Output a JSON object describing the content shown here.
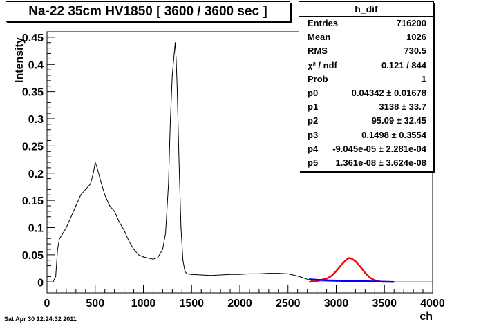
{
  "title": "Na-22 35cm HV1850 [ 3600 / 3600 sec ]",
  "footer": "Sat Apr 30 12:24:32 2011",
  "stats": {
    "name": "h_dif",
    "rows": [
      {
        "key": "Entries",
        "value": "716200"
      },
      {
        "key": "Mean",
        "value": "1026"
      },
      {
        "key": "RMS",
        "value": "730.5"
      },
      {
        "key": "χ² / ndf",
        "value": "0.121 / 844"
      },
      {
        "key": "Prob",
        "value": "1"
      },
      {
        "key": "p0",
        "value": "0.04342 ± 0.01678"
      },
      {
        "key": "p1",
        "value": "3138 ± 33.7"
      },
      {
        "key": "p2",
        "value": "95.09 ± 32.45"
      },
      {
        "key": "p3",
        "value": "0.1498 ± 0.3554"
      },
      {
        "key": "p4",
        "value": "-9.045e-05 ± 2.281e-04"
      },
      {
        "key": "p5",
        "value": "1.361e-08 ± 3.624e-08"
      }
    ]
  },
  "chart_data": {
    "type": "line",
    "title": "Na-22 35cm HV1850 [ 3600 / 3600 sec ]",
    "xlabel": "ch",
    "ylabel": "Intensity",
    "xlim": [
      0,
      4000
    ],
    "ylim": [
      -0.02,
      0.46
    ],
    "xticks": [
      "0",
      "500",
      "1000",
      "1500",
      "2000",
      "2500",
      "3000",
      "3500",
      "4000"
    ],
    "yticks": [
      "0",
      "0.05",
      "0.1",
      "0.15",
      "0.2",
      "0.25",
      "0.3",
      "0.35",
      "0.4",
      "0.45"
    ],
    "colors": {
      "histogram": "#000000",
      "gaussian_fit": "#ff0000",
      "background_fit": "#0000ff",
      "total_fit": "#00aa00"
    },
    "series": [
      {
        "x": [
          0,
          60,
          90,
          110,
          130,
          150,
          200,
          250,
          300,
          350,
          400,
          450,
          480,
          500,
          520,
          550,
          600,
          650,
          700,
          750,
          800,
          850,
          900,
          950,
          1000,
          1050,
          1100,
          1150,
          1200,
          1230,
          1260,
          1280,
          1300,
          1320,
          1330,
          1340,
          1350,
          1370,
          1390,
          1410,
          1430,
          1450,
          1500,
          1600,
          1700,
          1800,
          1900,
          2000,
          2100,
          2200,
          2300,
          2400,
          2500,
          2550,
          2600,
          2650,
          2700,
          2800,
          2900,
          3000,
          3050,
          3100,
          3130,
          3150,
          3200,
          3250,
          3300,
          3400,
          3500,
          3600,
          3800,
          4000
        ],
        "y": [
          0.0,
          0.0,
          0.01,
          0.06,
          0.08,
          0.085,
          0.1,
          0.12,
          0.14,
          0.16,
          0.17,
          0.18,
          0.2,
          0.22,
          0.21,
          0.19,
          0.16,
          0.14,
          0.13,
          0.11,
          0.095,
          0.075,
          0.06,
          0.05,
          0.046,
          0.044,
          0.042,
          0.045,
          0.06,
          0.09,
          0.18,
          0.3,
          0.38,
          0.42,
          0.44,
          0.41,
          0.36,
          0.22,
          0.1,
          0.04,
          0.02,
          0.015,
          0.014,
          0.013,
          0.012,
          0.013,
          0.014,
          0.014,
          0.015,
          0.015,
          0.016,
          0.016,
          0.015,
          0.013,
          0.011,
          0.008,
          0.005,
          0.0,
          0.0,
          0.0,
          0.0,
          0.0,
          0.0,
          0.0,
          0.0,
          0.0,
          0.0,
          0.0,
          0.0,
          0.0,
          0.0,
          0.0
        ]
      },
      {
        "x": [
          2720,
          2800,
          2900,
          2950,
          3000,
          3050,
          3100,
          3130,
          3160,
          3200,
          3250,
          3300,
          3350,
          3400,
          3450,
          3500
        ],
        "y": [
          0.0,
          0.002,
          0.006,
          0.011,
          0.02,
          0.031,
          0.04,
          0.044,
          0.043,
          0.038,
          0.028,
          0.017,
          0.008,
          0.003,
          0.001,
          0.0
        ]
      },
      {
        "x": [
          2720,
          2800,
          2900,
          3000,
          3100,
          3200,
          3300,
          3400,
          3500,
          3600
        ],
        "y": [
          0.005,
          0.004,
          0.003,
          0.0025,
          0.002,
          0.002,
          0.0015,
          0.001,
          0.0005,
          0.0
        ]
      }
    ]
  }
}
